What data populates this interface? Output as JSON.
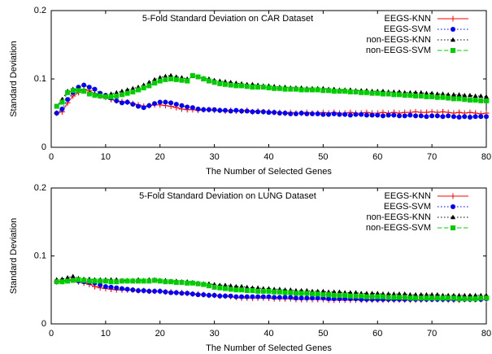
{
  "chart_data": [
    {
      "type": "line",
      "title": "5-Fold Standard Deviation on CAR Dataset",
      "x_label": "The Number of Selected Genes",
      "y_label": "Standard Deviation",
      "xlim": [
        0,
        80
      ],
      "xticks": [
        0,
        10,
        20,
        30,
        40,
        50,
        60,
        70,
        80
      ],
      "ylim": [
        0,
        0.2
      ],
      "yticks": [
        0,
        0.1,
        0.2
      ],
      "legend": "upper right",
      "x": [
        1,
        2,
        3,
        4,
        5,
        6,
        7,
        8,
        9,
        10,
        11,
        12,
        13,
        14,
        15,
        16,
        17,
        18,
        19,
        20,
        21,
        22,
        23,
        24,
        25,
        26,
        27,
        28,
        29,
        30,
        31,
        32,
        33,
        34,
        35,
        36,
        37,
        38,
        39,
        40,
        41,
        42,
        43,
        44,
        45,
        46,
        47,
        48,
        49,
        50,
        51,
        52,
        53,
        54,
        55,
        56,
        57,
        58,
        59,
        60,
        61,
        62,
        63,
        64,
        65,
        66,
        67,
        68,
        69,
        70,
        71,
        72,
        73,
        74,
        75,
        76,
        77,
        78,
        79,
        80
      ],
      "series": [
        {
          "name": "EEGS-KNN",
          "color": "#ff0000",
          "marker": "plus",
          "linestyle": "solid",
          "values": [
            0.05,
            0.052,
            0.065,
            0.075,
            0.08,
            0.085,
            0.083,
            0.078,
            0.075,
            0.073,
            0.07,
            0.068,
            0.067,
            0.066,
            0.064,
            0.062,
            0.06,
            0.061,
            0.062,
            0.062,
            0.061,
            0.06,
            0.058,
            0.056,
            0.055,
            0.055,
            0.054,
            0.055,
            0.055,
            0.054,
            0.054,
            0.053,
            0.054,
            0.053,
            0.053,
            0.054,
            0.052,
            0.053,
            0.052,
            0.052,
            0.051,
            0.051,
            0.05,
            0.051,
            0.05,
            0.05,
            0.051,
            0.05,
            0.05,
            0.051,
            0.05,
            0.051,
            0.05,
            0.05,
            0.051,
            0.05,
            0.05,
            0.051,
            0.05,
            0.05,
            0.051,
            0.05,
            0.051,
            0.05,
            0.051,
            0.051,
            0.052,
            0.051,
            0.051,
            0.052,
            0.051,
            0.052,
            0.051,
            0.05,
            0.051,
            0.05,
            0.051,
            0.05,
            0.049,
            0.05
          ]
        },
        {
          "name": "EEGS-SVM",
          "color": "#0000ff",
          "marker": "circle",
          "linestyle": "dotted",
          "values": [
            0.05,
            0.056,
            0.07,
            0.08,
            0.088,
            0.091,
            0.088,
            0.085,
            0.079,
            0.076,
            0.072,
            0.068,
            0.065,
            0.066,
            0.063,
            0.06,
            0.058,
            0.061,
            0.064,
            0.066,
            0.066,
            0.065,
            0.063,
            0.061,
            0.059,
            0.058,
            0.056,
            0.055,
            0.055,
            0.055,
            0.054,
            0.054,
            0.053,
            0.054,
            0.053,
            0.053,
            0.052,
            0.052,
            0.052,
            0.051,
            0.051,
            0.05,
            0.05,
            0.049,
            0.049,
            0.05,
            0.049,
            0.049,
            0.049,
            0.048,
            0.048,
            0.049,
            0.048,
            0.048,
            0.047,
            0.048,
            0.048,
            0.047,
            0.047,
            0.047,
            0.046,
            0.047,
            0.047,
            0.046,
            0.046,
            0.047,
            0.046,
            0.046,
            0.045,
            0.046,
            0.046,
            0.045,
            0.046,
            0.045,
            0.044,
            0.045,
            0.044,
            0.045,
            0.045,
            0.045
          ]
        },
        {
          "name": "non-EEGS-KNN",
          "color": "#000000",
          "marker": "triangle",
          "linestyle": "dotted",
          "values": [
            0.06,
            0.07,
            0.082,
            0.085,
            0.085,
            0.083,
            0.08,
            0.078,
            0.077,
            0.076,
            0.078,
            0.08,
            0.082,
            0.084,
            0.086,
            0.088,
            0.091,
            0.095,
            0.099,
            0.102,
            0.104,
            0.105,
            0.103,
            0.102,
            0.1,
            0.104,
            0.103,
            0.101,
            0.1,
            0.098,
            0.097,
            0.096,
            0.095,
            0.094,
            0.093,
            0.092,
            0.092,
            0.091,
            0.09,
            0.09,
            0.089,
            0.088,
            0.088,
            0.087,
            0.087,
            0.087,
            0.086,
            0.086,
            0.086,
            0.086,
            0.085,
            0.085,
            0.084,
            0.084,
            0.084,
            0.083,
            0.083,
            0.083,
            0.082,
            0.082,
            0.082,
            0.081,
            0.081,
            0.081,
            0.08,
            0.08,
            0.08,
            0.08,
            0.079,
            0.079,
            0.078,
            0.078,
            0.077,
            0.077,
            0.077,
            0.076,
            0.076,
            0.075,
            0.075,
            0.074
          ]
        },
        {
          "name": "non-EEGS-SVM",
          "color": "#00cc00",
          "marker": "square",
          "linestyle": "dashed",
          "values": [
            0.06,
            0.066,
            0.08,
            0.083,
            0.083,
            0.082,
            0.078,
            0.076,
            0.075,
            0.074,
            0.074,
            0.075,
            0.077,
            0.079,
            0.081,
            0.084,
            0.087,
            0.09,
            0.094,
            0.097,
            0.099,
            0.1,
            0.099,
            0.098,
            0.097,
            0.105,
            0.103,
            0.1,
            0.097,
            0.095,
            0.093,
            0.092,
            0.091,
            0.09,
            0.09,
            0.089,
            0.088,
            0.088,
            0.088,
            0.087,
            0.086,
            0.086,
            0.085,
            0.085,
            0.085,
            0.084,
            0.084,
            0.084,
            0.084,
            0.083,
            0.083,
            0.082,
            0.082,
            0.082,
            0.081,
            0.081,
            0.08,
            0.08,
            0.079,
            0.079,
            0.078,
            0.078,
            0.077,
            0.077,
            0.076,
            0.076,
            0.075,
            0.075,
            0.074,
            0.074,
            0.073,
            0.073,
            0.072,
            0.071,
            0.071,
            0.07,
            0.069,
            0.069,
            0.068,
            0.068
          ]
        }
      ]
    },
    {
      "type": "line",
      "title": "5-Fold Standard Deviation on LUNG Dataset",
      "x_label": "The Number of Selected Genes",
      "y_label": "Standard Deviation",
      "xlim": [
        0,
        80
      ],
      "xticks": [
        0,
        10,
        20,
        30,
        40,
        50,
        60,
        70,
        80
      ],
      "ylim": [
        0,
        0.2
      ],
      "yticks": [
        0,
        0.1,
        0.2
      ],
      "legend": "upper right",
      "x": [
        1,
        2,
        3,
        4,
        5,
        6,
        7,
        8,
        9,
        10,
        11,
        12,
        13,
        14,
        15,
        16,
        17,
        18,
        19,
        20,
        21,
        22,
        23,
        24,
        25,
        26,
        27,
        28,
        29,
        30,
        31,
        32,
        33,
        34,
        35,
        36,
        37,
        38,
        39,
        40,
        41,
        42,
        43,
        44,
        45,
        46,
        47,
        48,
        49,
        50,
        51,
        52,
        53,
        54,
        55,
        56,
        57,
        58,
        59,
        60,
        61,
        62,
        63,
        64,
        65,
        66,
        67,
        68,
        69,
        70,
        71,
        72,
        73,
        74,
        75,
        76,
        77,
        78,
        79,
        80
      ],
      "series": [
        {
          "name": "EEGS-KNN",
          "color": "#ff0000",
          "marker": "plus",
          "linestyle": "solid",
          "values": [
            0.062,
            0.063,
            0.064,
            0.065,
            0.062,
            0.06,
            0.058,
            0.055,
            0.053,
            0.052,
            0.051,
            0.05,
            0.05,
            0.05,
            0.05,
            0.049,
            0.049,
            0.048,
            0.048,
            0.048,
            0.047,
            0.047,
            0.046,
            0.046,
            0.045,
            0.044,
            0.044,
            0.043,
            0.042,
            0.042,
            0.041,
            0.041,
            0.04,
            0.039,
            0.038,
            0.038,
            0.038,
            0.038,
            0.038,
            0.038,
            0.037,
            0.037,
            0.037,
            0.037,
            0.036,
            0.036,
            0.036,
            0.036,
            0.036,
            0.036,
            0.035,
            0.035,
            0.035,
            0.035,
            0.035,
            0.035,
            0.035,
            0.035,
            0.035,
            0.035,
            0.035,
            0.035,
            0.035,
            0.035,
            0.035,
            0.035,
            0.035,
            0.035,
            0.036,
            0.036,
            0.036,
            0.036,
            0.035,
            0.035,
            0.035,
            0.036,
            0.036,
            0.036,
            0.036,
            0.036
          ]
        },
        {
          "name": "EEGS-SVM",
          "color": "#0000ff",
          "marker": "circle",
          "linestyle": "dotted",
          "values": [
            0.062,
            0.062,
            0.063,
            0.065,
            0.063,
            0.062,
            0.061,
            0.06,
            0.057,
            0.055,
            0.054,
            0.053,
            0.052,
            0.051,
            0.05,
            0.049,
            0.049,
            0.048,
            0.048,
            0.048,
            0.047,
            0.046,
            0.046,
            0.045,
            0.045,
            0.044,
            0.043,
            0.043,
            0.042,
            0.042,
            0.041,
            0.041,
            0.041,
            0.04,
            0.04,
            0.04,
            0.04,
            0.04,
            0.04,
            0.04,
            0.039,
            0.039,
            0.039,
            0.039,
            0.038,
            0.038,
            0.038,
            0.038,
            0.038,
            0.038,
            0.037,
            0.037,
            0.037,
            0.037,
            0.037,
            0.037,
            0.036,
            0.036,
            0.036,
            0.036,
            0.036,
            0.036,
            0.036,
            0.036,
            0.036,
            0.036,
            0.036,
            0.036,
            0.036,
            0.036,
            0.036,
            0.036,
            0.036,
            0.036,
            0.036,
            0.036,
            0.036,
            0.036,
            0.036,
            0.037
          ]
        },
        {
          "name": "non-EEGS-KNN",
          "color": "#000000",
          "marker": "triangle",
          "linestyle": "dotted",
          "values": [
            0.065,
            0.066,
            0.068,
            0.07,
            0.067,
            0.066,
            0.066,
            0.065,
            0.065,
            0.065,
            0.065,
            0.065,
            0.064,
            0.064,
            0.064,
            0.065,
            0.064,
            0.065,
            0.065,
            0.064,
            0.064,
            0.063,
            0.063,
            0.062,
            0.062,
            0.061,
            0.06,
            0.059,
            0.059,
            0.058,
            0.057,
            0.057,
            0.056,
            0.055,
            0.055,
            0.054,
            0.053,
            0.053,
            0.052,
            0.052,
            0.051,
            0.051,
            0.05,
            0.05,
            0.049,
            0.049,
            0.049,
            0.048,
            0.048,
            0.048,
            0.047,
            0.047,
            0.047,
            0.046,
            0.046,
            0.046,
            0.045,
            0.045,
            0.045,
            0.045,
            0.044,
            0.044,
            0.044,
            0.044,
            0.044,
            0.043,
            0.043,
            0.043,
            0.043,
            0.043,
            0.043,
            0.042,
            0.042,
            0.042,
            0.042,
            0.042,
            0.042,
            0.042,
            0.042,
            0.042
          ]
        },
        {
          "name": "non-EEGS-SVM",
          "color": "#00cc00",
          "marker": "square",
          "linestyle": "dashed",
          "values": [
            0.062,
            0.062,
            0.063,
            0.064,
            0.065,
            0.064,
            0.063,
            0.063,
            0.063,
            0.063,
            0.062,
            0.062,
            0.063,
            0.063,
            0.063,
            0.063,
            0.063,
            0.063,
            0.064,
            0.063,
            0.062,
            0.062,
            0.061,
            0.061,
            0.06,
            0.06,
            0.059,
            0.058,
            0.056,
            0.054,
            0.053,
            0.052,
            0.051,
            0.05,
            0.05,
            0.049,
            0.049,
            0.048,
            0.048,
            0.048,
            0.047,
            0.047,
            0.046,
            0.046,
            0.045,
            0.045,
            0.045,
            0.044,
            0.044,
            0.043,
            0.043,
            0.042,
            0.042,
            0.042,
            0.041,
            0.041,
            0.041,
            0.04,
            0.04,
            0.04,
            0.04,
            0.039,
            0.039,
            0.039,
            0.039,
            0.038,
            0.038,
            0.038,
            0.038,
            0.038,
            0.038,
            0.038,
            0.038,
            0.038,
            0.037,
            0.037,
            0.037,
            0.037,
            0.038,
            0.038
          ]
        }
      ]
    }
  ]
}
